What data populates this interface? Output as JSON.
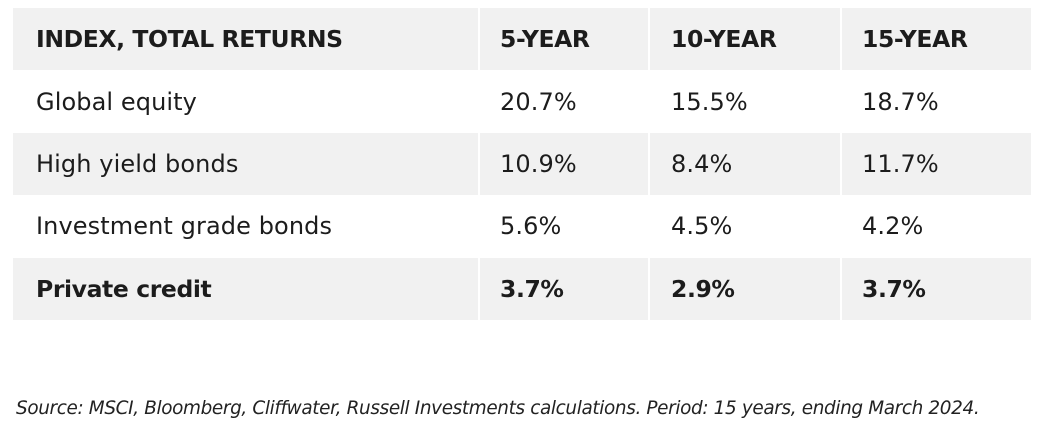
{
  "chart_data": {
    "type": "table",
    "columns": [
      "INDEX, TOTAL RETURNS",
      "5-YEAR",
      "10-YEAR",
      "15-YEAR"
    ],
    "rows": [
      {
        "name": "Global equity",
        "y5": "20.7%",
        "y10": "15.5%",
        "y15": "18.7%",
        "bold": false
      },
      {
        "name": "High yield bonds",
        "y5": "10.9%",
        "y10": "8.4%",
        "y15": "11.7%",
        "bold": false
      },
      {
        "name": "Investment grade bonds",
        "y5": "5.6%",
        "y10": "4.5%",
        "y15": "4.2%",
        "bold": false
      },
      {
        "name": "Private credit",
        "y5": "3.7%",
        "y10": "2.9%",
        "y15": "3.7%",
        "bold": true
      }
    ],
    "values": {
      "Global equity": [
        20.7,
        15.5,
        18.7
      ],
      "High yield bonds": [
        10.9,
        8.4,
        11.7
      ],
      "Investment grade bonds": [
        5.6,
        4.5,
        4.2
      ],
      "Private credit": [
        3.7,
        2.9,
        3.7
      ]
    }
  },
  "source_note": "Source: MSCI, Bloomberg, Cliffwater, Russell Investments calculations. Period: 15 years, ending March 2024.",
  "colors": {
    "shaded_row": "#f1f1f1",
    "text": "#1c1c1c"
  }
}
